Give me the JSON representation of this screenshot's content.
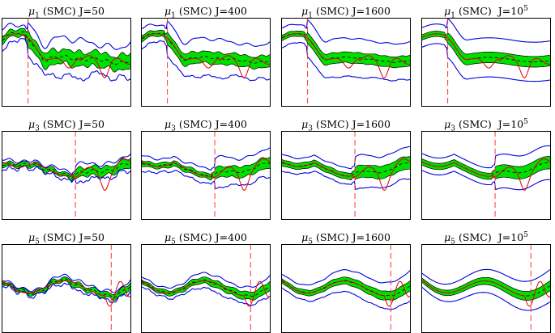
{
  "chart_data": [
    {
      "type": "line",
      "title_param": "μ",
      "title_sub": "1",
      "title_method": "(SMC)",
      "title_J": "J=50",
      "J_base": "",
      "J_exp": "",
      "shape": "A",
      "change_x": 0.2,
      "band_half": 0.08,
      "outer_half": 0.19,
      "jitter": 0.9,
      "colors": {
        "band": "#00e000",
        "outer": "#0000e0",
        "true": "#e00000",
        "change": "#ff3333",
        "mean": "#000000"
      }
    },
    {
      "type": "line",
      "title_param": "μ",
      "title_sub": "1",
      "title_method": "(SMC)",
      "title_J": "J=400",
      "J_base": "",
      "J_exp": "",
      "shape": "A",
      "change_x": 0.2,
      "band_half": 0.065,
      "outer_half": 0.2,
      "jitter": 0.45,
      "colors": {
        "band": "#00e000",
        "outer": "#0000e0",
        "true": "#e00000",
        "change": "#ff3333",
        "mean": "#000000"
      }
    },
    {
      "type": "line",
      "title_param": "μ",
      "title_sub": "1",
      "title_method": "(SMC)",
      "title_J": "J=1600",
      "J_base": "",
      "J_exp": "",
      "shape": "A",
      "change_x": 0.2,
      "band_half": 0.06,
      "outer_half": 0.21,
      "jitter": 0.2,
      "colors": {
        "band": "#00e000",
        "outer": "#0000e0",
        "true": "#e00000",
        "change": "#ff3333",
        "mean": "#000000"
      }
    },
    {
      "type": "line",
      "title_param": "μ",
      "title_sub": "1",
      "title_method": "(SMC)",
      "title_J": "",
      "J_base": "J=10",
      "J_exp": "5",
      "shape": "A",
      "change_x": 0.2,
      "band_half": 0.06,
      "outer_half": 0.22,
      "jitter": 0.0,
      "colors": {
        "band": "#00e000",
        "outer": "#0000e0",
        "true": "#e00000",
        "change": "#ff3333",
        "mean": "#000000"
      }
    },
    {
      "type": "line",
      "title_param": "μ",
      "title_sub": "3",
      "title_method": "(SMC)",
      "title_J": "J=50",
      "J_base": "",
      "J_exp": "",
      "shape": "B",
      "change_x": 0.57,
      "band_half": 0.05,
      "outer_half": 0.09,
      "jitter": 0.9,
      "colors": {
        "band": "#00e000",
        "outer": "#0000e0",
        "true": "#e00000",
        "change": "#ff3333",
        "mean": "#000000"
      }
    },
    {
      "type": "line",
      "title_param": "μ",
      "title_sub": "3",
      "title_method": "(SMC)",
      "title_J": "J=400",
      "J_base": "",
      "J_exp": "",
      "shape": "B",
      "change_x": 0.57,
      "band_half": 0.06,
      "outer_half": 0.16,
      "jitter": 0.45,
      "colors": {
        "band": "#00e000",
        "outer": "#0000e0",
        "true": "#e00000",
        "change": "#ff3333",
        "mean": "#000000"
      }
    },
    {
      "type": "line",
      "title_param": "μ",
      "title_sub": "3",
      "title_method": "(SMC)",
      "title_J": "J=1600",
      "J_base": "",
      "J_exp": "",
      "shape": "B",
      "change_x": 0.57,
      "band_half": 0.07,
      "outer_half": 0.18,
      "jitter": 0.2,
      "colors": {
        "band": "#00e000",
        "outer": "#0000e0",
        "true": "#e00000",
        "change": "#ff3333",
        "mean": "#000000"
      }
    },
    {
      "type": "line",
      "title_param": "μ",
      "title_sub": "3",
      "title_method": "(SMC)",
      "title_J": "",
      "J_base": "J=10",
      "J_exp": "5",
      "shape": "B",
      "change_x": 0.57,
      "band_half": 0.07,
      "outer_half": 0.19,
      "jitter": 0.0,
      "colors": {
        "band": "#00e000",
        "outer": "#0000e0",
        "true": "#e00000",
        "change": "#ff3333",
        "mean": "#000000"
      }
    },
    {
      "type": "line",
      "title_param": "μ",
      "title_sub": "5",
      "title_method": "(SMC)",
      "title_J": "J=50",
      "J_base": "",
      "J_exp": "",
      "shape": "C",
      "change_x": 0.85,
      "band_half": 0.025,
      "outer_half": 0.045,
      "jitter": 0.9,
      "colors": {
        "band": "#00e000",
        "outer": "#0000e0",
        "true": "#e00000",
        "change": "#ff3333",
        "mean": "#000000"
      }
    },
    {
      "type": "line",
      "title_param": "μ",
      "title_sub": "5",
      "title_method": "(SMC)",
      "title_J": "J=400",
      "J_base": "",
      "J_exp": "",
      "shape": "C",
      "change_x": 0.85,
      "band_half": 0.035,
      "outer_half": 0.08,
      "jitter": 0.45,
      "colors": {
        "band": "#00e000",
        "outer": "#0000e0",
        "true": "#e00000",
        "change": "#ff3333",
        "mean": "#000000"
      }
    },
    {
      "type": "line",
      "title_param": "μ",
      "title_sub": "5",
      "title_method": "(SMC)",
      "title_J": "J=1600",
      "J_base": "",
      "J_exp": "",
      "shape": "C",
      "change_x": 0.85,
      "band_half": 0.04,
      "outer_half": 0.12,
      "jitter": 0.2,
      "colors": {
        "band": "#00e000",
        "outer": "#0000e0",
        "true": "#e00000",
        "change": "#ff3333",
        "mean": "#000000"
      }
    },
    {
      "type": "line",
      "title_param": "μ",
      "title_sub": "5",
      "title_method": "(SMC)",
      "title_J": "",
      "J_base": "J=10",
      "J_exp": "5",
      "shape": "C",
      "change_x": 0.85,
      "band_half": 0.04,
      "outer_half": 0.13,
      "jitter": 0.0,
      "colors": {
        "band": "#00e000",
        "outer": "#0000e0",
        "true": "#e00000",
        "change": "#ff3333",
        "mean": "#000000"
      }
    }
  ]
}
